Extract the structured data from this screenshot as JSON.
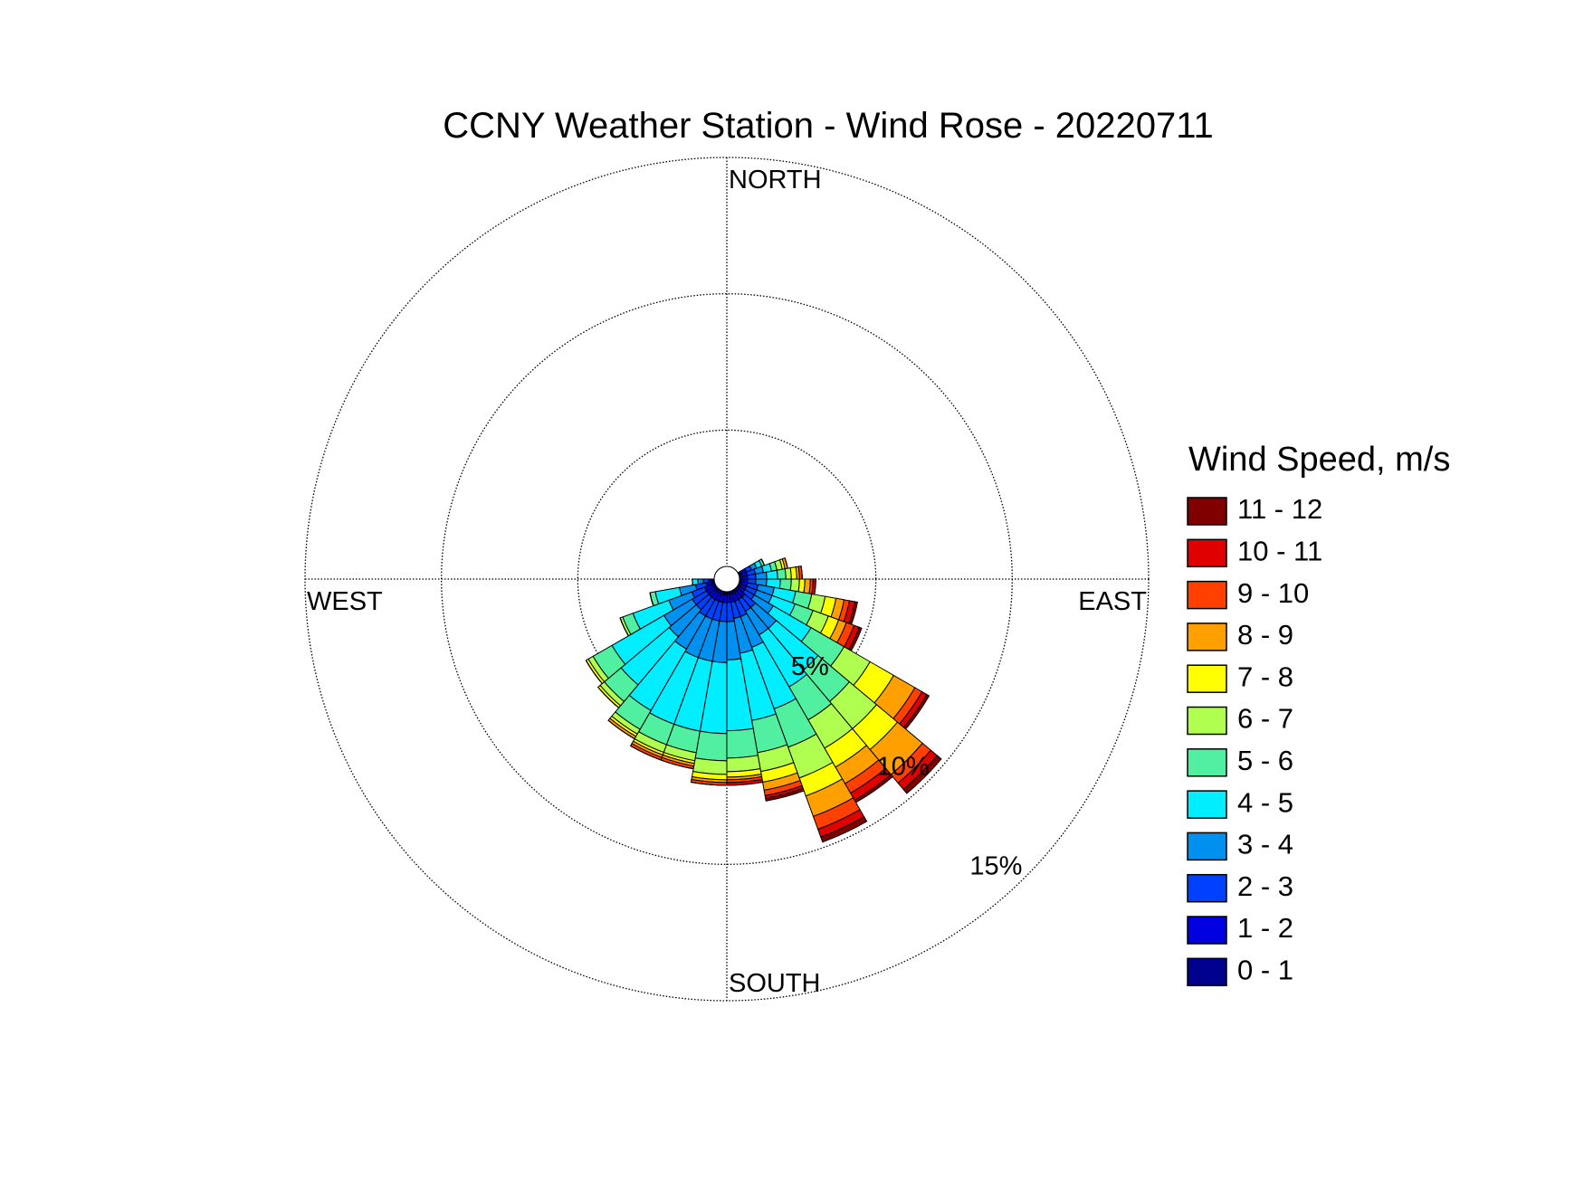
{
  "chart_data": {
    "type": "windrose",
    "title": "CCNY Weather Station - Wind Rose - 20220711",
    "legend_title": "Wind Speed, m/s",
    "direction_labels": [
      "NORTH",
      "EAST",
      "SOUTH",
      "WEST"
    ],
    "x": [
      65,
      75,
      85,
      95,
      105,
      115,
      125,
      135,
      145,
      155,
      165,
      175,
      185,
      195,
      205,
      215,
      225,
      235,
      245,
      255,
      265
    ],
    "rlim": [
      0,
      15
    ],
    "rticks": [
      {
        "value": 5,
        "label": "5%"
      },
      {
        "value": 10,
        "label": "10%"
      },
      {
        "value": 15,
        "label": "15%"
      }
    ],
    "grid": true,
    "legend_position": "right",
    "series": [
      {
        "name": "0 - 1",
        "color": "#00008f",
        "values": [
          0.1,
          0.1,
          0.1,
          0.1,
          0.1,
          0.1,
          0.1,
          0.1,
          0.1,
          0.1,
          0.1,
          0.1,
          0.1,
          0.1,
          0.1,
          0.1,
          0.1,
          0.1,
          0.1,
          0.1,
          0.1
        ]
      },
      {
        "name": "1 - 2",
        "color": "#0000e0",
        "values": [
          0.2,
          0.2,
          0.2,
          0.2,
          0.2,
          0.2,
          0.2,
          0.3,
          0.3,
          0.3,
          0.3,
          0.3,
          0.3,
          0.3,
          0.3,
          0.3,
          0.3,
          0.3,
          0.3,
          0.2,
          0.1
        ]
      },
      {
        "name": "2 - 3",
        "color": "#0040ff",
        "values": [
          0.2,
          0.3,
          0.3,
          0.3,
          0.4,
          0.4,
          0.4,
          0.5,
          0.5,
          0.6,
          0.6,
          0.7,
          0.7,
          0.7,
          0.7,
          0.7,
          0.6,
          0.6,
          0.5,
          0.4,
          0.2
        ]
      },
      {
        "name": "3 - 4",
        "color": "#0090f0",
        "values": [
          0.2,
          0.3,
          0.4,
          0.4,
          0.6,
          0.6,
          0.8,
          1.0,
          1.0,
          1.2,
          1.3,
          1.4,
          1.5,
          1.5,
          1.5,
          1.4,
          1.3,
          1.2,
          0.9,
          0.6,
          0.2
        ]
      },
      {
        "name": "4 - 5",
        "color": "#00eeff",
        "values": [
          0.2,
          0.3,
          0.4,
          0.5,
          0.8,
          0.9,
          1.6,
          2.0,
          2.2,
          2.4,
          2.5,
          2.6,
          2.6,
          2.6,
          2.6,
          2.6,
          2.3,
          2.2,
          1.4,
          0.9,
          0.2
        ]
      },
      {
        "name": "5 - 6",
        "color": "#50f0a0",
        "values": [
          0.1,
          0.2,
          0.3,
          0.4,
          0.6,
          0.7,
          1.4,
          1.5,
          1.4,
          1.5,
          1.2,
          1.0,
          1.0,
          0.8,
          0.8,
          0.8,
          0.8,
          0.8,
          0.4,
          0.2,
          0
        ]
      },
      {
        "name": "6 - 7",
        "color": "#b0ff50",
        "values": [
          0,
          0.2,
          0.2,
          0.3,
          0.5,
          0.6,
          1.1,
          1.3,
          1.2,
          1.2,
          0.7,
          0.5,
          0.5,
          0.3,
          0.3,
          0.2,
          0.2,
          0.2,
          0.1,
          0,
          0
        ]
      },
      {
        "name": "7 - 8",
        "color": "#ffff00",
        "values": [
          0,
          0.1,
          0.2,
          0.2,
          0.4,
          0.4,
          1.0,
          1.0,
          0.8,
          0.7,
          0.4,
          0.2,
          0.2,
          0.1,
          0.1,
          0.1,
          0.1,
          0.1,
          0,
          0,
          0
        ]
      },
      {
        "name": "8 - 9",
        "color": "#ff9f00",
        "values": [
          0,
          0.1,
          0.1,
          0.2,
          0.3,
          0.3,
          0.9,
          1.2,
          0.7,
          0.8,
          0.3,
          0.1,
          0.1,
          0.1,
          0.1,
          0.1,
          0,
          0,
          0,
          0,
          0
        ]
      },
      {
        "name": "9 - 10",
        "color": "#ff4000",
        "values": [
          0,
          0,
          0.1,
          0.1,
          0.2,
          0.3,
          0.3,
          0.4,
          0.4,
          0.5,
          0.2,
          0.1,
          0.1,
          0.1,
          0.1,
          0,
          0,
          0,
          0,
          0,
          0
        ]
      },
      {
        "name": "10 - 11",
        "color": "#e00000",
        "values": [
          0,
          0,
          0,
          0.1,
          0.2,
          0.2,
          0.2,
          0.3,
          0.3,
          0.3,
          0.1,
          0.1,
          0,
          0,
          0,
          0,
          0,
          0,
          0,
          0,
          0
        ]
      },
      {
        "name": "11 - 12",
        "color": "#800000",
        "values": [
          0,
          0,
          0,
          0,
          0.1,
          0.1,
          0.1,
          0.2,
          0.1,
          0.2,
          0.1,
          0,
          0,
          0,
          0,
          0,
          0,
          0,
          0,
          0,
          0
        ]
      }
    ]
  }
}
